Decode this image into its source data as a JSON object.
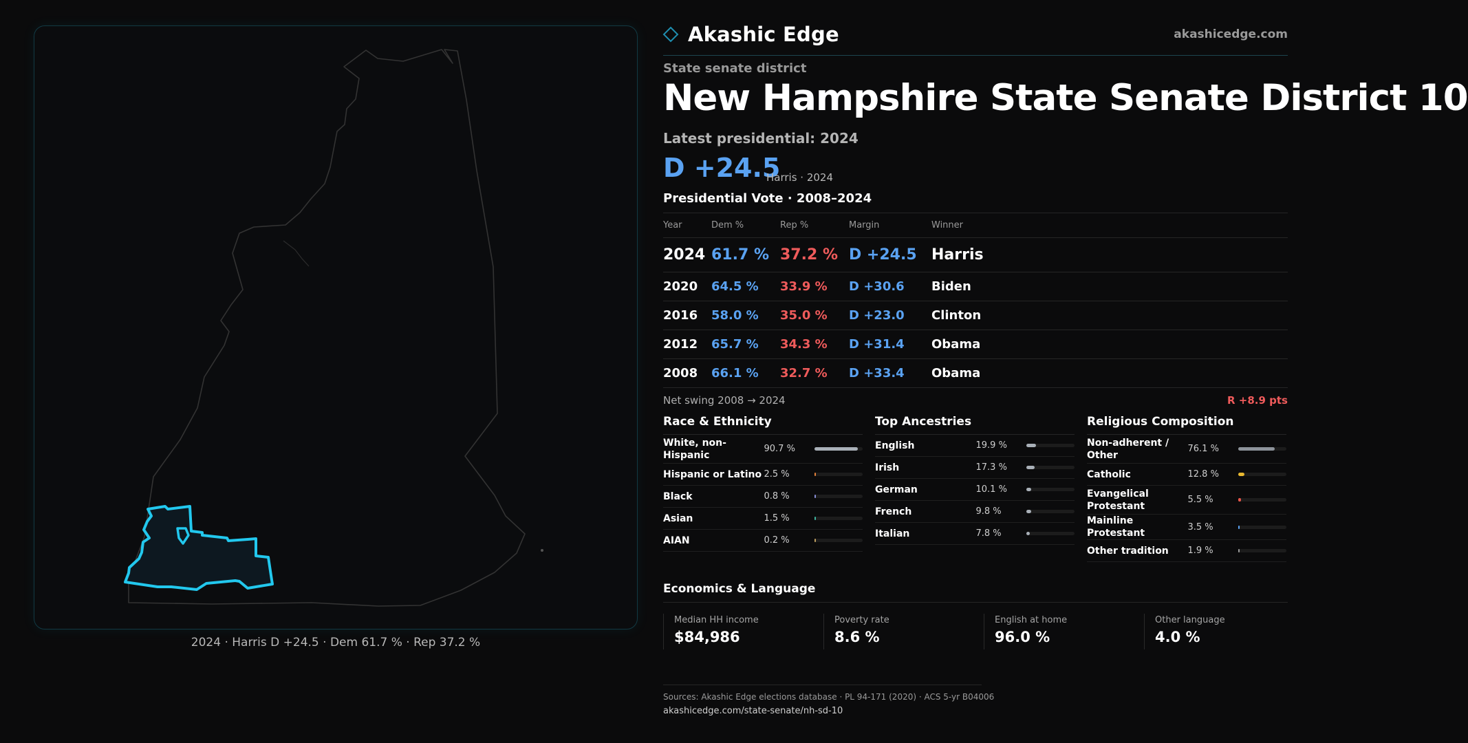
{
  "brand": {
    "name": "Akashic Edge",
    "url": "akashicedge.com"
  },
  "district": {
    "kind": "State senate district",
    "title": "New Hampshire State Senate District 10",
    "latest_label": "Latest presidential: 2024",
    "margin": "D +24.5",
    "margin_sub": "Harris · 2024"
  },
  "map": {
    "caption": "2024 · Harris D +24.5 · Dem 61.7 % · Rep 37.2 %"
  },
  "presidential": {
    "title": "Presidential Vote · 2008–2024",
    "headers": [
      "Year",
      "Dem %",
      "Rep %",
      "Margin",
      "Winner"
    ],
    "rows": [
      {
        "year": "2024",
        "dem": "61.7 %",
        "rep": "37.2 %",
        "margin": "D +24.5",
        "winner": "Harris"
      },
      {
        "year": "2020",
        "dem": "64.5 %",
        "rep": "33.9 %",
        "margin": "D +30.6",
        "winner": "Biden"
      },
      {
        "year": "2016",
        "dem": "58.0 %",
        "rep": "35.0 %",
        "margin": "D +23.0",
        "winner": "Clinton"
      },
      {
        "year": "2012",
        "dem": "65.7 %",
        "rep": "34.3 %",
        "margin": "D +31.4",
        "winner": "Obama"
      },
      {
        "year": "2008",
        "dem": "66.1 %",
        "rep": "32.7 %",
        "margin": "D +33.4",
        "winner": "Obama"
      }
    ],
    "swing_label": "Net swing 2008 → 2024",
    "swing_value": "R +8.9 pts"
  },
  "demographics": [
    {
      "title": "Race & Ethnicity",
      "items": [
        {
          "label": "White, non-Hispanic",
          "value": "90.7 %",
          "share": 0.907,
          "color": "#a9b0b8"
        },
        {
          "label": "Hispanic or Latino",
          "value": "2.5 %",
          "share": 0.025,
          "color": "#e8823a"
        },
        {
          "label": "Black",
          "value": "0.8 %",
          "share": 0.008,
          "color": "#8a8fd8"
        },
        {
          "label": "Asian",
          "value": "1.5 %",
          "share": 0.015,
          "color": "#3fb6a0"
        },
        {
          "label": "AIAN",
          "value": "0.2 %",
          "share": 0.002,
          "color": "#c0a060"
        }
      ]
    },
    {
      "title": "Top Ancestries",
      "items": [
        {
          "label": "English",
          "value": "19.9 %",
          "share": 0.199,
          "color": "#a9b0b8"
        },
        {
          "label": "Irish",
          "value": "17.3 %",
          "share": 0.173,
          "color": "#a9b0b8"
        },
        {
          "label": "German",
          "value": "10.1 %",
          "share": 0.101,
          "color": "#a9b0b8"
        },
        {
          "label": "French",
          "value": "9.8 %",
          "share": 0.098,
          "color": "#a9b0b8"
        },
        {
          "label": "Italian",
          "value": "7.8 %",
          "share": 0.078,
          "color": "#a9b0b8"
        }
      ]
    },
    {
      "title": "Religious Composition",
      "items": [
        {
          "label": "Non-adherent / Other",
          "value": "76.1 %",
          "share": 0.761,
          "color": "#8d939a"
        },
        {
          "label": "Catholic",
          "value": "12.8 %",
          "share": 0.128,
          "color": "#e8b830"
        },
        {
          "label": "Evangelical Protestant",
          "value": "5.5 %",
          "share": 0.055,
          "color": "#e8564a"
        },
        {
          "label": "Mainline Protestant",
          "value": "3.5 %",
          "share": 0.035,
          "color": "#5aa2f2"
        },
        {
          "label": "Other tradition",
          "value": "1.9 %",
          "share": 0.019,
          "color": "#9a9a9a"
        }
      ]
    }
  ],
  "economics": {
    "title": "Economics & Language",
    "stats": [
      {
        "label": "Median HH income",
        "value": "$84,986"
      },
      {
        "label": "Poverty rate",
        "value": "8.6 %"
      },
      {
        "label": "English at home",
        "value": "96.0 %"
      },
      {
        "label": "Other language",
        "value": "4.0 %"
      }
    ]
  },
  "sources": {
    "text": "Sources: Akashic Edge elections database · PL 94-171 (2020) · ACS 5-yr B04006",
    "url": "akashicedge.com/state-senate/nh-sd-10"
  },
  "colors": {
    "dem": "#5aa2f2",
    "rep": "#ef5b5b",
    "district_outline": "#22c8ee",
    "accent_line": "#1d4650"
  }
}
